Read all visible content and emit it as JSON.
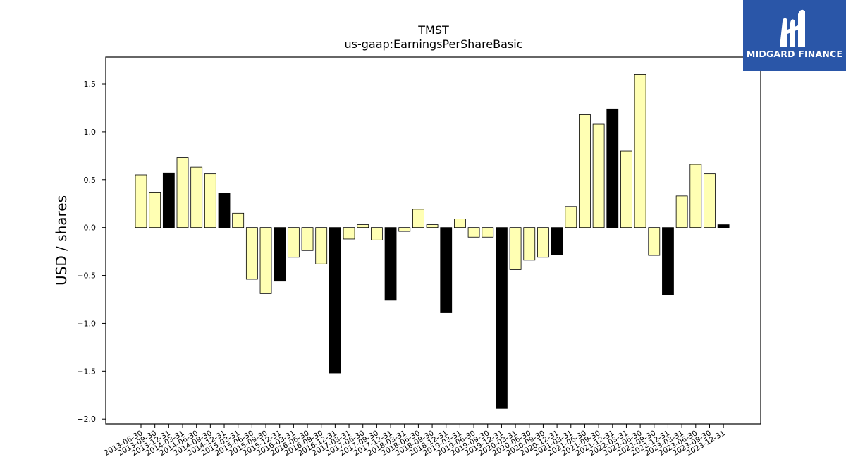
{
  "header": {
    "title": "TMST",
    "subtitle": "us-gaap:EarningsPerShareBasic"
  },
  "brand": {
    "name": "MIDGARD FINANCE",
    "color": "#2a56a8"
  },
  "chart_data": {
    "type": "bar",
    "title": "TMST",
    "subtitle": "us-gaap:EarningsPerShareBasic",
    "xlabel": "",
    "ylabel": "USD / shares",
    "ylim": [
      -2.05,
      1.78
    ],
    "yticks": [
      -2.0,
      -1.5,
      -1.0,
      -0.5,
      0.0,
      0.5,
      1.0,
      1.5
    ],
    "ytick_labels": [
      "−2.0",
      "−1.5",
      "−1.0",
      "−0.5",
      "0.0",
      "0.5",
      "1.0",
      "1.5"
    ],
    "grid": false,
    "legend": "none",
    "colors": {
      "quarter": "#ffffb3",
      "year_end": "#000000",
      "edge": "#000000"
    },
    "categories": [
      "2013-06-30",
      "2013-09-30",
      "2013-12-31",
      "2014-03-31",
      "2014-06-30",
      "2014-09-30",
      "2014-12-31",
      "2015-03-31",
      "2015-06-30",
      "2015-09-30",
      "2015-12-31",
      "2016-03-31",
      "2016-06-30",
      "2016-09-30",
      "2016-12-31",
      "2017-03-31",
      "2017-06-30",
      "2017-09-30",
      "2017-12-31",
      "2018-03-31",
      "2018-06-30",
      "2018-09-30",
      "2018-12-31",
      "2019-03-31",
      "2019-06-30",
      "2019-09-30",
      "2019-12-31",
      "2020-03-31",
      "2020-06-30",
      "2020-09-30",
      "2020-12-31",
      "2021-03-31",
      "2021-06-30",
      "2021-09-30",
      "2021-12-31",
      "2022-03-31",
      "2022-06-30",
      "2022-09-30",
      "2022-12-31",
      "2023-03-31",
      "2023-06-30",
      "2023-09-30",
      "2023-12-31"
    ],
    "values": [
      0.55,
      0.37,
      0.57,
      0.73,
      0.63,
      0.56,
      0.36,
      0.15,
      -0.54,
      -0.69,
      -0.56,
      -0.31,
      -0.24,
      -0.38,
      -1.52,
      -0.12,
      0.03,
      -0.13,
      -0.76,
      -0.04,
      0.19,
      0.03,
      -0.89,
      0.09,
      -0.1,
      -0.1,
      -1.89,
      -0.44,
      -0.34,
      -0.31,
      -0.28,
      0.22,
      1.18,
      1.08,
      1.24,
      0.8,
      1.6,
      -0.29,
      -0.7,
      0.33,
      0.66,
      0.56,
      0.03
    ],
    "year_end": [
      false,
      false,
      true,
      false,
      false,
      false,
      true,
      false,
      false,
      false,
      true,
      false,
      false,
      false,
      true,
      false,
      false,
      false,
      true,
      false,
      false,
      false,
      true,
      false,
      false,
      false,
      true,
      false,
      false,
      false,
      true,
      false,
      false,
      false,
      true,
      false,
      false,
      false,
      true,
      false,
      false,
      false,
      true
    ]
  }
}
